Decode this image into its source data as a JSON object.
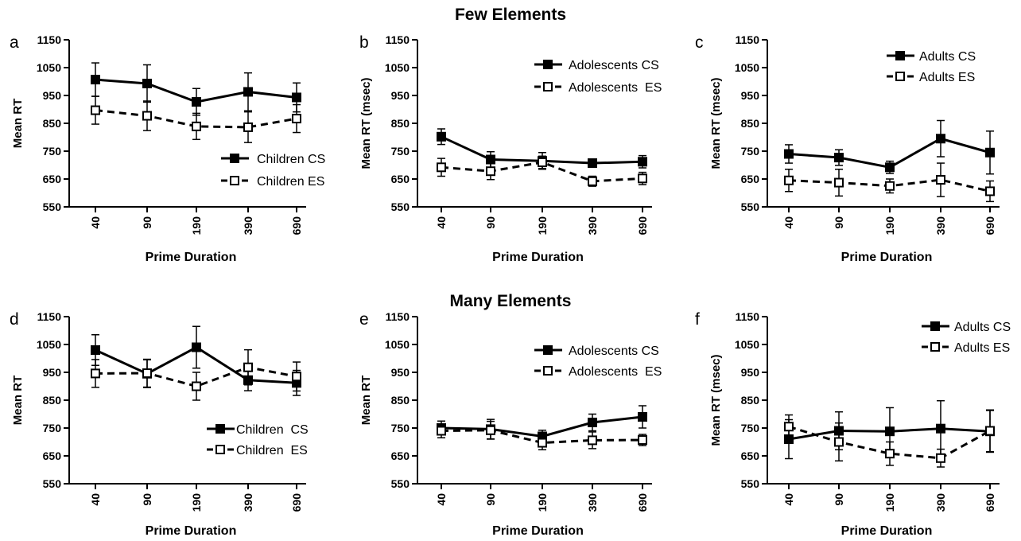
{
  "section_titles": {
    "top": "Few Elements",
    "bottom": "Many Elements"
  },
  "colors": {
    "axis": "#000000",
    "series": "#000000",
    "background": "#ffffff"
  },
  "chart_data": [
    {
      "type": "line",
      "panel_letter": "a",
      "x": [
        "40",
        "90",
        "190",
        "390",
        "690"
      ],
      "xlabel": "Prime Duration",
      "ylabel": "Mean RT",
      "ylim": [
        550,
        1150
      ],
      "yticks": [
        550,
        650,
        750,
        850,
        950,
        1050,
        1150
      ],
      "grid": false,
      "legend_position": "bottom-right",
      "series": [
        {
          "name": "Children CS",
          "marker": "filled-square",
          "line": "solid",
          "values": [
            1007,
            993,
            927,
            963,
            943
          ],
          "errors": [
            60,
            67,
            48,
            68,
            52
          ]
        },
        {
          "name": "Children ES",
          "marker": "open-square",
          "line": "dashed",
          "values": [
            897,
            877,
            839,
            836,
            867
          ],
          "errors": [
            50,
            53,
            47,
            55,
            50
          ]
        }
      ]
    },
    {
      "type": "line",
      "panel_letter": "b",
      "x": [
        "40",
        "90",
        "190",
        "390",
        "690"
      ],
      "xlabel": "Prime Duration",
      "ylabel": "Mean RT (msec)",
      "ylim": [
        550,
        1150
      ],
      "yticks": [
        550,
        650,
        750,
        850,
        950,
        1050,
        1150
      ],
      "grid": false,
      "legend_position": "top-right",
      "series": [
        {
          "name": "Adolescents CS",
          "marker": "filled-square",
          "line": "solid",
          "values": [
            802,
            720,
            715,
            707,
            712
          ],
          "errors": [
            28,
            28,
            30,
            15,
            22
          ]
        },
        {
          "name": "Adolescents  ES",
          "marker": "open-square",
          "line": "dashed",
          "values": [
            692,
            678,
            710,
            642,
            652
          ],
          "errors": [
            32,
            30,
            22,
            18,
            22
          ]
        }
      ]
    },
    {
      "type": "line",
      "panel_letter": "c",
      "x": [
        "40",
        "90",
        "190",
        "390",
        "690"
      ],
      "xlabel": "Prime Duration",
      "ylabel": "Mean RT (msec)",
      "ylim": [
        550,
        1150
      ],
      "yticks": [
        550,
        650,
        750,
        850,
        950,
        1050,
        1150
      ],
      "grid": false,
      "legend_position": "top-right",
      "series": [
        {
          "name": "Adults CS",
          "marker": "filled-square",
          "line": "solid",
          "values": [
            740,
            727,
            692,
            795,
            745
          ],
          "errors": [
            33,
            28,
            22,
            65,
            77
          ]
        },
        {
          "name": "Adults ES",
          "marker": "open-square",
          "line": "dashed",
          "values": [
            645,
            637,
            625,
            647,
            606
          ],
          "errors": [
            40,
            48,
            25,
            60,
            37
          ]
        }
      ]
    },
    {
      "type": "line",
      "panel_letter": "d",
      "x": [
        "40",
        "90",
        "190",
        "390",
        "690"
      ],
      "xlabel": "Prime Duration",
      "ylabel": "Mean RT",
      "ylim": [
        550,
        1150
      ],
      "yticks": [
        550,
        650,
        750,
        850,
        950,
        1050,
        1150
      ],
      "grid": false,
      "legend_position": "bottom-right",
      "series": [
        {
          "name": "Children  CS",
          "marker": "filled-square",
          "line": "solid",
          "values": [
            1030,
            945,
            1040,
            922,
            912
          ],
          "errors": [
            55,
            50,
            75,
            38,
            45
          ]
        },
        {
          "name": "Children  ES",
          "marker": "open-square",
          "line": "dashed",
          "values": [
            946,
            947,
            900,
            968,
            935
          ],
          "errors": [
            50,
            50,
            50,
            63,
            52
          ]
        }
      ]
    },
    {
      "type": "line",
      "panel_letter": "e",
      "x": [
        "40",
        "90",
        "190",
        "390",
        "690"
      ],
      "xlabel": "Prime Duration",
      "ylabel": "Mean RT",
      "ylim": [
        550,
        1150
      ],
      "yticks": [
        550,
        650,
        750,
        850,
        950,
        1050,
        1150
      ],
      "grid": false,
      "legend_position": "top-right",
      "series": [
        {
          "name": "Adolescents CS",
          "marker": "filled-square",
          "line": "solid",
          "values": [
            750,
            746,
            720,
            770,
            790
          ],
          "errors": [
            25,
            35,
            22,
            30,
            40
          ]
        },
        {
          "name": "Adolescents  ES",
          "marker": "open-square",
          "line": "dashed",
          "values": [
            740,
            742,
            697,
            706,
            707
          ],
          "errors": [
            25,
            32,
            25,
            30,
            20
          ]
        }
      ]
    },
    {
      "type": "line",
      "panel_letter": "f",
      "x": [
        "40",
        "90",
        "190",
        "390",
        "690"
      ],
      "xlabel": "Prime Duration",
      "ylabel": "Mean RT (msec)",
      "ylim": [
        550,
        1150
      ],
      "yticks": [
        550,
        650,
        750,
        850,
        950,
        1050,
        1150
      ],
      "grid": false,
      "legend_position": "top-right",
      "series": [
        {
          "name": "Adults CS",
          "marker": "filled-square",
          "line": "solid",
          "values": [
            710,
            740,
            738,
            748,
            738
          ],
          "errors": [
            70,
            68,
            85,
            100,
            75
          ]
        },
        {
          "name": "Adults ES",
          "marker": "open-square",
          "line": "dashed",
          "values": [
            755,
            700,
            658,
            642,
            740
          ],
          "errors": [
            42,
            68,
            42,
            32,
            75
          ]
        }
      ]
    }
  ]
}
